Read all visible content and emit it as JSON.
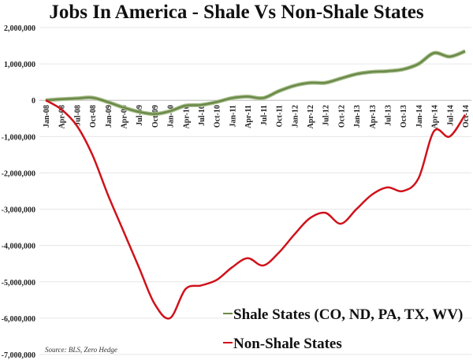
{
  "chart_data": {
    "type": "line",
    "title": "Jobs In America - Shale Vs Non-Shale States",
    "source": "Source: BLS, Zero Hedge",
    "ylim": [
      -7000000,
      2000000
    ],
    "yticks": [
      "2,000,000",
      "1,000,000",
      "0",
      "-1,000,000",
      "-2,000,000",
      "-3,000,000",
      "-4,000,000",
      "-5,000,000",
      "-6,000,000",
      "-7,000,000"
    ],
    "ytick_values": [
      2000000,
      1000000,
      0,
      -1000000,
      -2000000,
      -3000000,
      -4000000,
      -5000000,
      -6000000,
      -7000000
    ],
    "categories": [
      "Jan-08",
      "Apr-08",
      "Jul-08",
      "Oct-08",
      "Jan-09",
      "Apr-09",
      "Jul-09",
      "Oct-09",
      "Jan-10",
      "Apr-10",
      "Jul-10",
      "Oct-10",
      "Jan-11",
      "Apr-11",
      "Jul-11",
      "Oct-11",
      "Jan-12",
      "Apr-12",
      "Jul-12",
      "Oct-12",
      "Jan-13",
      "Apr-13",
      "Jul-13",
      "Oct-13",
      "Jan-14",
      "Apr-14",
      "Jul-14",
      "Oct-14"
    ],
    "grid": true,
    "legend": "bottom-right",
    "series": [
      {
        "name": "Shale States (CO, ND, PA, TX, WV)",
        "color": "#6b8a4a",
        "values": [
          0,
          30000,
          50000,
          70000,
          -50000,
          -200000,
          -320000,
          -380000,
          -300000,
          -150000,
          -130000,
          -50000,
          60000,
          100000,
          60000,
          250000,
          400000,
          480000,
          480000,
          600000,
          720000,
          780000,
          800000,
          850000,
          1000000,
          1300000,
          1200000,
          1350000
        ]
      },
      {
        "name": "Non-Shale States",
        "color": "#d0121b",
        "values": [
          0,
          -250000,
          -700000,
          -1500000,
          -2600000,
          -3600000,
          -4600000,
          -5600000,
          -6000000,
          -5200000,
          -5100000,
          -4950000,
          -4600000,
          -4350000,
          -4550000,
          -4200000,
          -3700000,
          -3250000,
          -3100000,
          -3400000,
          -3000000,
          -2600000,
          -2400000,
          -2500000,
          -2150000,
          -850000,
          -1000000,
          -400000
        ]
      }
    ]
  }
}
